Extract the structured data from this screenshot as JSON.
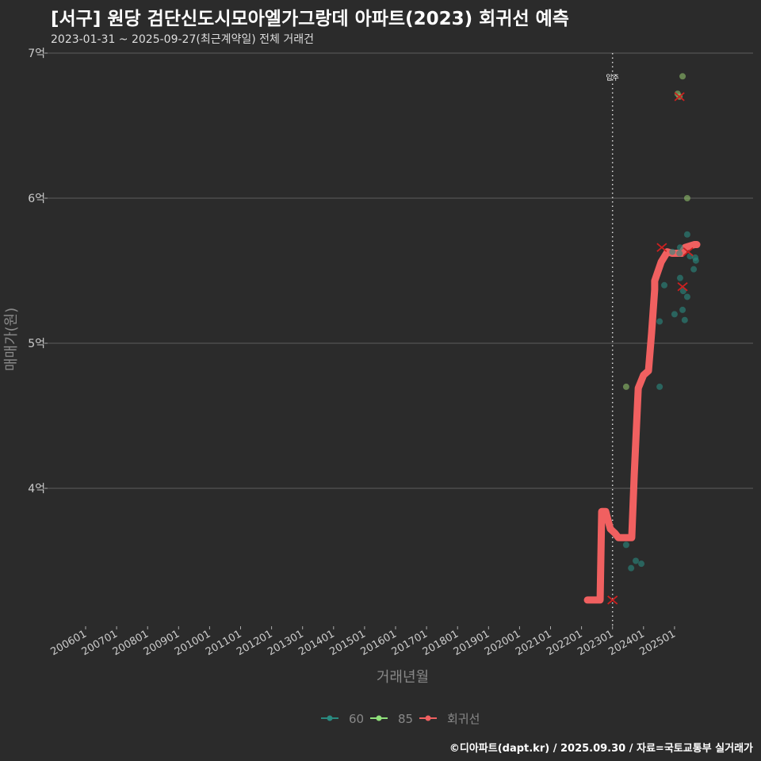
{
  "chart_data": {
    "type": "scatter",
    "title": "[서구] 원당 검단신도시모아엘가그랑데 아파트(2023) 회귀선 예측",
    "subtitle": "2023-01-31 ~ 2025-09-27(최근계약일) 전체 거래건",
    "xlabel": "거래년월",
    "ylabel": "매매가(원)",
    "ylim": [
      3.05,
      7.0
    ],
    "xlim": [
      2004.75,
      2028.0
    ],
    "y_ticks": [
      {
        "v": 4,
        "label": "4억"
      },
      {
        "v": 5,
        "label": "5억"
      },
      {
        "v": 6,
        "label": "6억"
      },
      {
        "v": 7,
        "label": "7억"
      }
    ],
    "x_ticks": [
      {
        "v": 2006,
        "label": "200601"
      },
      {
        "v": 2007,
        "label": "200701"
      },
      {
        "v": 2008,
        "label": "200801"
      },
      {
        "v": 2009,
        "label": "200901"
      },
      {
        "v": 2010,
        "label": "201001"
      },
      {
        "v": 2011,
        "label": "201101"
      },
      {
        "v": 2012,
        "label": "201201"
      },
      {
        "v": 2013,
        "label": "201301"
      },
      {
        "v": 2014,
        "label": "201401"
      },
      {
        "v": 2015,
        "label": "201501"
      },
      {
        "v": 2016,
        "label": "201601"
      },
      {
        "v": 2017,
        "label": "201701"
      },
      {
        "v": 2018,
        "label": "201801"
      },
      {
        "v": 2019,
        "label": "201901"
      },
      {
        "v": 2020,
        "label": "202001"
      },
      {
        "v": 2021,
        "label": "202101"
      },
      {
        "v": 2022,
        "label": "202201"
      },
      {
        "v": 2023,
        "label": "202301"
      },
      {
        "v": 2024,
        "label": "202401"
      },
      {
        "v": 2025,
        "label": "202501"
      }
    ],
    "annotation": {
      "x": 2023.0,
      "label": "입주"
    },
    "legend": {
      "position": "bottom",
      "items": [
        {
          "label": "60",
          "color": "#2a8a80"
        },
        {
          "label": "85",
          "color": "#8fe07a"
        },
        {
          "label": "회귀선",
          "color": "#f06060"
        }
      ]
    },
    "series": [
      {
        "name": "60",
        "color": "#2a8a80",
        "points": [
          [
            2023.44,
            3.61
          ],
          [
            2023.6,
            3.45
          ],
          [
            2023.75,
            3.5
          ],
          [
            2023.93,
            3.48
          ],
          [
            2024.52,
            4.7
          ],
          [
            2024.52,
            5.15
          ],
          [
            2024.67,
            5.4
          ],
          [
            2025.0,
            5.2
          ],
          [
            2025.18,
            5.45
          ],
          [
            2025.28,
            5.36
          ],
          [
            2025.26,
            5.23
          ],
          [
            2025.33,
            5.16
          ],
          [
            2025.41,
            5.32
          ],
          [
            2025.41,
            5.75
          ],
          [
            2025.62,
            5.51
          ],
          [
            2025.67,
            5.59
          ],
          [
            2025.69,
            5.57
          ],
          [
            2025.16,
            5.62
          ],
          [
            2024.93,
            5.63
          ],
          [
            2025.18,
            5.66
          ],
          [
            2025.5,
            5.6
          ]
        ]
      },
      {
        "name": "85",
        "color": "#8fbf6a",
        "points": [
          [
            2023.44,
            4.7
          ],
          [
            2025.26,
            6.84
          ],
          [
            2025.1,
            6.72
          ],
          [
            2025.41,
            6.0
          ],
          [
            2025.16,
            6.7
          ]
        ]
      },
      {
        "name": "outliers",
        "color": "#cc2020",
        "points": [
          [
            2023.0,
            3.23
          ],
          [
            2025.16,
            6.7
          ],
          [
            2024.59,
            5.66
          ],
          [
            2025.44,
            5.63
          ],
          [
            2025.26,
            5.39
          ]
        ]
      },
      {
        "name": "회귀선",
        "color": "#f06060",
        "line": [
          [
            2022.19,
            3.23
          ],
          [
            2022.6,
            3.23
          ],
          [
            2022.65,
            3.84
          ],
          [
            2022.78,
            3.84
          ],
          [
            2022.93,
            3.72
          ],
          [
            2023.08,
            3.69
          ],
          [
            2023.19,
            3.66
          ],
          [
            2023.62,
            3.66
          ],
          [
            2023.7,
            4.09
          ],
          [
            2023.83,
            4.69
          ],
          [
            2024.0,
            4.78
          ],
          [
            2024.16,
            4.81
          ],
          [
            2024.26,
            5.07
          ],
          [
            2024.36,
            5.37
          ],
          [
            2024.36,
            5.43
          ],
          [
            2024.57,
            5.56
          ],
          [
            2024.77,
            5.63
          ],
          [
            2024.93,
            5.62
          ],
          [
            2025.23,
            5.62
          ],
          [
            2025.34,
            5.66
          ],
          [
            2025.64,
            5.68
          ],
          [
            2025.72,
            5.68
          ]
        ]
      }
    ]
  },
  "credit": "©디아파트(dapt.kr) / 2025.09.30 / 자료=국토교통부 실거래가"
}
